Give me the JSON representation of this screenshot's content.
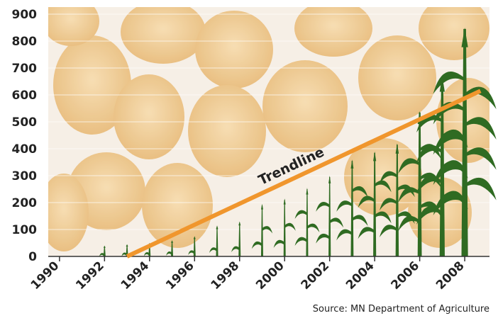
{
  "chart_data": {
    "type": "pictograph",
    "x": [
      1990,
      1991,
      1992,
      1993,
      1994,
      1995,
      1996,
      1997,
      1998,
      1999,
      2000,
      2001,
      2002,
      2003,
      2004,
      2005,
      2006,
      2007,
      2008
    ],
    "values": [
      0,
      0,
      35,
      40,
      45,
      55,
      70,
      110,
      125,
      190,
      210,
      250,
      295,
      355,
      385,
      415,
      535,
      665,
      845
    ],
    "color": "#2f6b22",
    "xlim": [
      1989.5,
      2009.1
    ],
    "ylim": [
      0,
      900
    ],
    "xticks": [
      1990,
      1992,
      1994,
      1996,
      1998,
      2000,
      2002,
      2004,
      2006,
      2008
    ],
    "yticks": [
      0,
      100,
      200,
      300,
      400,
      500,
      600,
      700,
      800,
      900
    ],
    "trendline": {
      "label": "Trendline",
      "x": [
        1993,
        2008.7
      ],
      "values": [
        0,
        615
      ],
      "color": "#f0962d"
    },
    "source": "Source: MN Department of Agriculture"
  }
}
